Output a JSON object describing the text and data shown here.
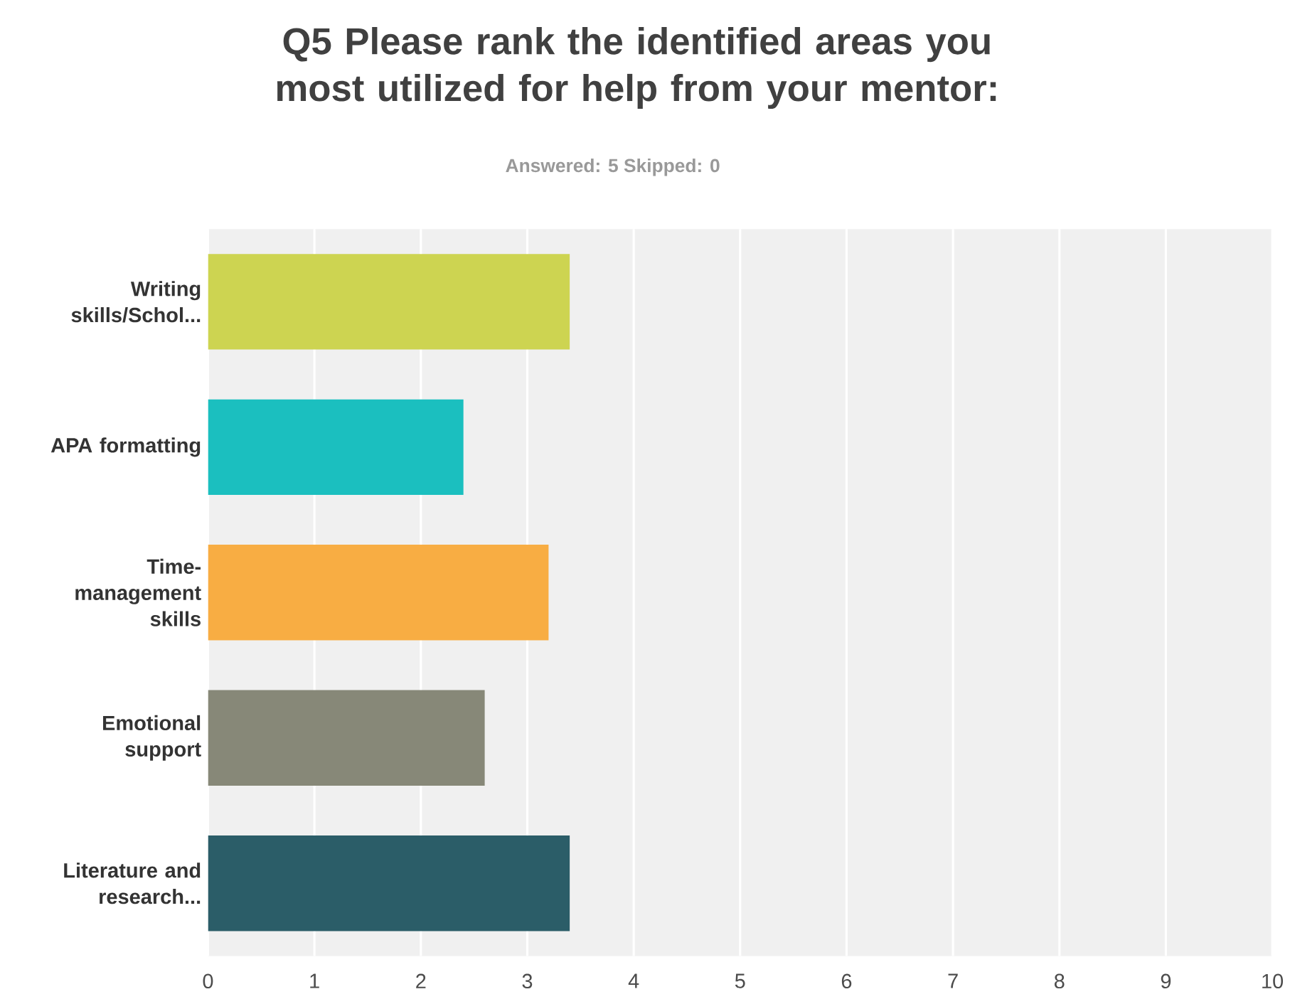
{
  "chart_data": {
    "type": "bar",
    "orientation": "horizontal",
    "title": "Q5 Please rank the identified areas you most utilized for help from your mentor:",
    "subtitle": "Answered: 5    Skipped: 0",
    "categories": [
      "Writing skills/Schol...",
      "APA formatting",
      "Time-management skills",
      "Emotional support",
      "Literature and research..."
    ],
    "values": [
      3.4,
      2.4,
      3.2,
      2.6,
      3.4
    ],
    "colors": [
      "#cdd451",
      "#1bbfbf",
      "#f8ad43",
      "#878878",
      "#2b5d68"
    ],
    "xlim": [
      0,
      10
    ],
    "xticks": [
      0,
      1,
      2,
      3,
      4,
      5,
      6,
      7,
      8,
      9,
      10
    ],
    "grid": "x"
  }
}
